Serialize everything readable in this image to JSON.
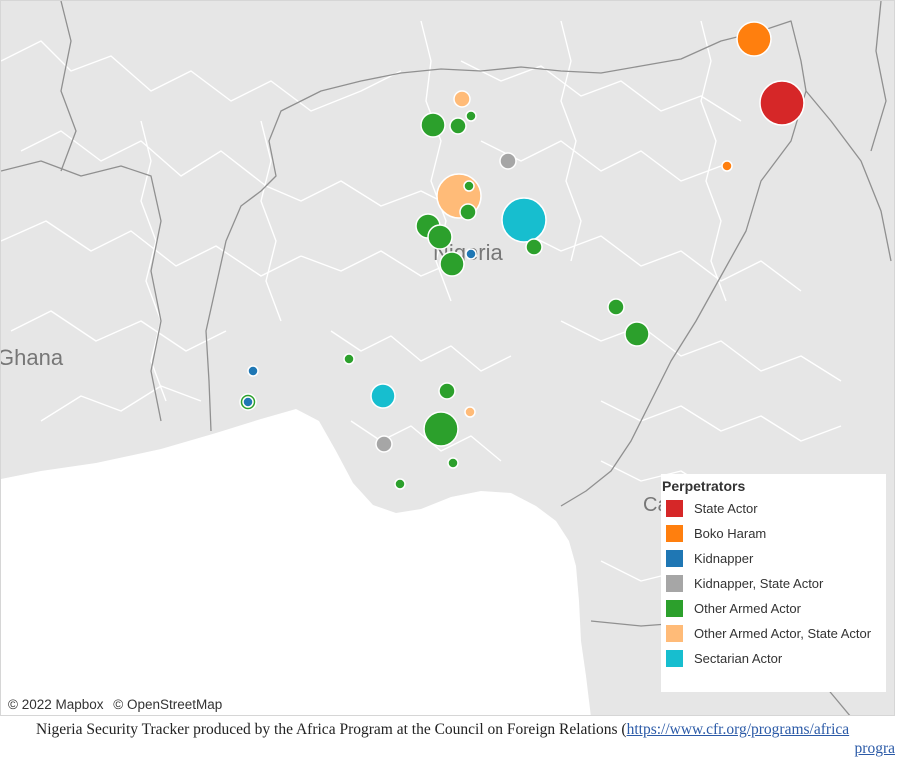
{
  "map": {
    "labels": {
      "country_main": "Nigeria",
      "country_left": "Ghana",
      "country_right_partial": "Ca"
    },
    "attribution": [
      "© 2022 Mapbox",
      "© OpenStreetMap"
    ]
  },
  "legend": {
    "title": "Perpetrators",
    "items": [
      {
        "label": "State Actor",
        "color": "#d62728"
      },
      {
        "label": "Boko Haram",
        "color": "#ff7f0e"
      },
      {
        "label": "Kidnapper",
        "color": "#1f77b4"
      },
      {
        "label": "Kidnapper, State Actor",
        "color": "#a6a6a6"
      },
      {
        "label": "Other Armed Actor",
        "color": "#2ca02c"
      },
      {
        "label": "Other Armed Actor, State Actor",
        "color": "#ffbb78"
      },
      {
        "label": "Sectarian Actor",
        "color": "#17becf"
      }
    ]
  },
  "incidents": [
    {
      "category": 0,
      "size": "xl"
    },
    {
      "category": 1,
      "size": "l"
    },
    {
      "category": 1,
      "size": "xs"
    },
    {
      "category": 5,
      "size": "s"
    },
    {
      "category": 4,
      "size": "m"
    },
    {
      "category": 4,
      "size": "s"
    },
    {
      "category": 4,
      "size": "xs"
    },
    {
      "category": 3,
      "size": "s"
    },
    {
      "category": 5,
      "size": "xl"
    },
    {
      "category": 4,
      "size": "s"
    },
    {
      "category": 6,
      "size": "xl"
    },
    {
      "category": 4,
      "size": "m"
    },
    {
      "category": 4,
      "size": "m"
    },
    {
      "category": 2,
      "size": "xs"
    },
    {
      "category": 4,
      "size": "s"
    },
    {
      "category": 4,
      "size": "m"
    },
    {
      "category": 4,
      "size": "s"
    },
    {
      "category": 4,
      "size": "m"
    },
    {
      "category": 4,
      "size": "xs"
    },
    {
      "category": 2,
      "size": "xs"
    },
    {
      "category": 4,
      "size": "s"
    },
    {
      "category": 2,
      "size": "xs"
    },
    {
      "category": 6,
      "size": "m"
    },
    {
      "category": 4,
      "size": "s"
    },
    {
      "category": 5,
      "size": "xs"
    },
    {
      "category": 4,
      "size": "l"
    },
    {
      "category": 3,
      "size": "s"
    },
    {
      "category": 4,
      "size": "xs"
    },
    {
      "category": 4,
      "size": "xs"
    },
    {
      "category": 4,
      "size": "xs"
    }
  ],
  "footer": {
    "text": "Nigeria Security Tracker produced by the Africa Program at the Council on Foreign Relations (",
    "link_text": "https://www.cfr.org/programs/africa",
    "link_text_line2": "progra"
  }
}
